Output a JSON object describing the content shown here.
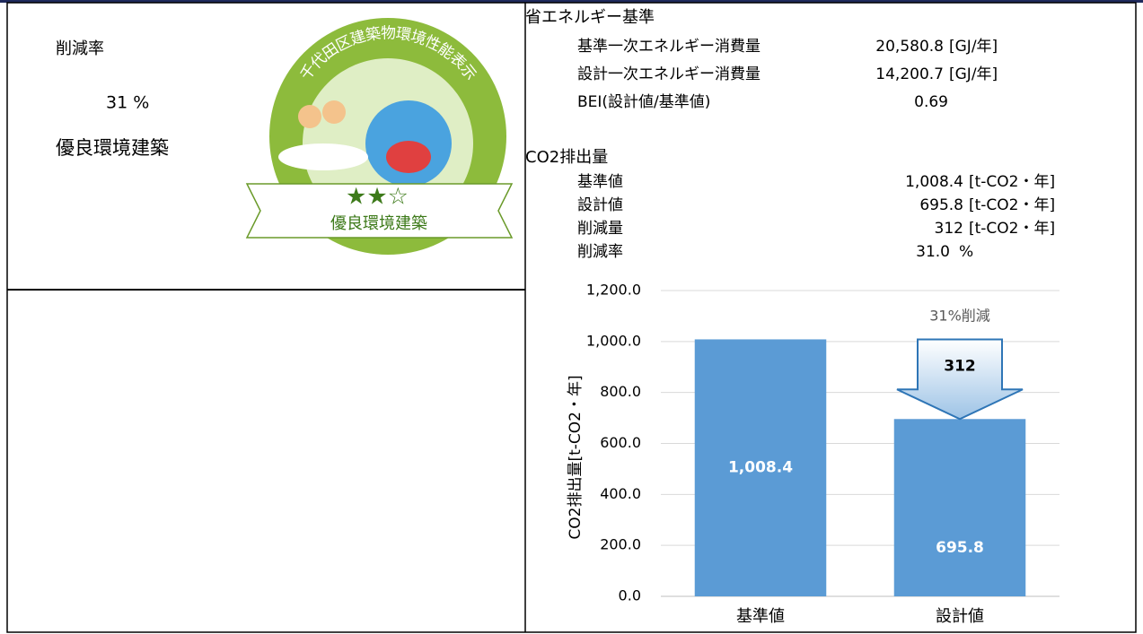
{
  "left": {
    "reduction_label": "削減率",
    "reduction_value": "31 %",
    "rating": "優良環境建築",
    "badge": {
      "arc_text": "千代田区建築物環境性能表示",
      "stars": "★★☆",
      "banner": "優良環境建築"
    }
  },
  "energy": {
    "title": "省エネルギー基準",
    "rows": [
      [
        "基準一次エネルギー消費量",
        "20,580.8",
        "[GJ/年]"
      ],
      [
        "設計一次エネルギー消費量",
        "14,200.7",
        "[GJ/年]"
      ],
      [
        "BEI(設計値/基準値)",
        "0.69"
      ]
    ]
  },
  "co2": {
    "title": "CO2排出量",
    "rows": [
      [
        "基準値",
        "1,008.4",
        "[t-CO2・年]"
      ],
      [
        "設計値",
        "695.8",
        "[t-CO2・年]"
      ],
      [
        "削減量",
        "312",
        "[t-CO2・年]"
      ],
      [
        "削減率",
        "31.0",
        "%"
      ]
    ]
  },
  "chart": {
    "type": "bar",
    "ylabel": "CO2排出量[t-CO2・年]",
    "categories": [
      "基準値",
      "設計値"
    ],
    "values": [
      1008.4,
      695.8
    ],
    "value_labels": [
      "1,008.4",
      "695.8"
    ],
    "color": "#5b9bd5",
    "ylim": [
      0,
      1200
    ],
    "yticks": [
      {
        "value": 0,
        "label": "0.0"
      },
      {
        "value": 200,
        "label": "200.0"
      },
      {
        "value": 400,
        "label": "400.0"
      },
      {
        "value": 600,
        "label": "600.0"
      },
      {
        "value": 800,
        "label": "800.0"
      },
      {
        "value": 1000,
        "label": "1,000.0"
      },
      {
        "value": 1200,
        "label": "1,200.0"
      }
    ],
    "grid": true,
    "annotation": "31%削減",
    "arrow_label": "312"
  }
}
